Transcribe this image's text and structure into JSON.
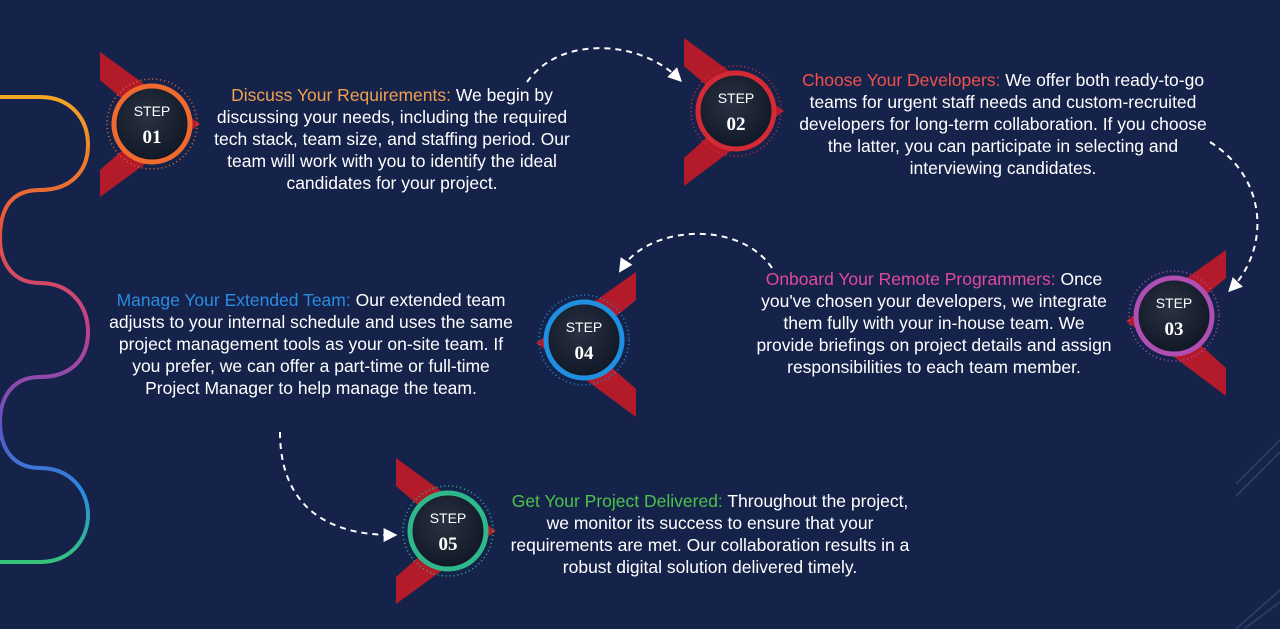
{
  "badge_word": "STEP",
  "colors": {
    "background": "#15234a",
    "chevron": "#b31b2a",
    "step1": "#ef6a2e",
    "step2": "#d42a35",
    "step3": "#b04fb3",
    "step4": "#1f8fe0",
    "step5": "#2fb98a"
  },
  "steps": [
    {
      "number": "01",
      "title": "Discuss Your Requirements:",
      "title_color": "#f0a050",
      "body": "We begin by discussing your needs, including the required tech stack, team size, and staffing period. Our team will work with you to identify the ideal candidates for your project."
    },
    {
      "number": "02",
      "title": "Choose Your Developers:",
      "title_color": "#f0524a",
      "body": "We offer both ready-to-go teams for urgent staff needs and custom-recruited developers for long-term collaboration. If you choose the latter, you can participate in selecting and interviewing candidates."
    },
    {
      "number": "03",
      "title": "Onboard Your Remote Programmers:",
      "title_color": "#e04a9a",
      "body": "Once you've chosen your developers, we integrate them fully with your in-house team. We provide briefings on project details and assign responsibilities to each team member."
    },
    {
      "number": "04",
      "title": "Manage Your Extended Team:",
      "title_color": "#2b8be0",
      "body": "Our extended team adjusts to your internal schedule and uses the same project management tools as your on-site team. If you prefer, we can offer a part-time or full-time Project Manager to help manage the team."
    },
    {
      "number": "05",
      "title": "Get Your Project Delivered:",
      "title_color": "#4cc24a",
      "body": "Throughout the project, we monitor its success to ensure that your requirements are met. Our collaboration results in a robust digital solution delivered timely."
    }
  ]
}
